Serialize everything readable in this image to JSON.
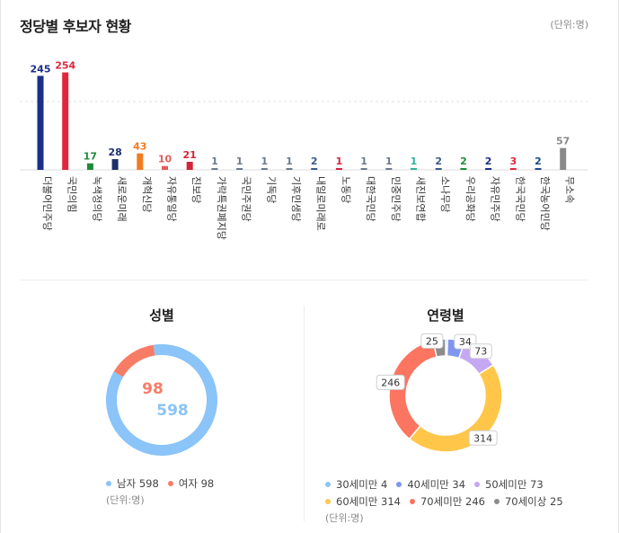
{
  "header": {
    "title": "정당별 후보자 현황",
    "unit": "(단위:명)"
  },
  "gender_section": {
    "title": "성별",
    "unit": "(단위:명)"
  },
  "age_section": {
    "title": "연령별",
    "unit": "(단위:명)"
  },
  "chart_data": [
    {
      "type": "bar",
      "title": "정당별 후보자 현황",
      "categories": [
        "더불어민주당",
        "국민의힘",
        "녹색정의당",
        "새로운미래",
        "개혁신당",
        "자유통일당",
        "진보당",
        "가락특권폐지당",
        "국민주권당",
        "기독당",
        "기후민생당",
        "내일로미래로",
        "노동당",
        "대한국민당",
        "민중민주당",
        "새진보연합",
        "소나무당",
        "우리공화당",
        "자유민주당",
        "한국국민당",
        "한국농어민당",
        "무소속"
      ],
      "values": [
        245,
        254,
        17,
        28,
        43,
        10,
        21,
        1,
        1,
        1,
        1,
        2,
        1,
        1,
        1,
        1,
        2,
        2,
        2,
        3,
        2,
        57
      ],
      "colors": [
        "#1b2f8a",
        "#e0263b",
        "#1e8a3a",
        "#1b2f6b",
        "#f07c22",
        "#e35b5b",
        "#d4233a",
        "#6b7a8a",
        "#6b7a8a",
        "#6b7a8a",
        "#6b7a8a",
        "#3b5a8a",
        "#d4233a",
        "#6b7a8a",
        "#6b7a8a",
        "#2bb39a",
        "#3b5a8a",
        "#1e8a3a",
        "#1b2f8a",
        "#e0263b",
        "#1b4a8a",
        "#8a8a8a"
      ],
      "ylim": [
        0,
        260
      ]
    },
    {
      "type": "pie",
      "title": "성별",
      "categories": [
        "남자",
        "여자"
      ],
      "values": [
        598,
        98
      ],
      "colors": [
        "#8ac4f8",
        "#f77c66"
      ]
    },
    {
      "type": "pie",
      "title": "연령별",
      "categories": [
        "30세미만",
        "40세미만",
        "50세미만",
        "60세미만",
        "70세미만",
        "70세이상"
      ],
      "values": [
        4,
        34,
        73,
        314,
        246,
        25
      ],
      "colors": [
        "#8ac4f8",
        "#7f95ee",
        "#c4a8f2",
        "#ffc64a",
        "#fc7560",
        "#8c8c8c"
      ]
    }
  ]
}
